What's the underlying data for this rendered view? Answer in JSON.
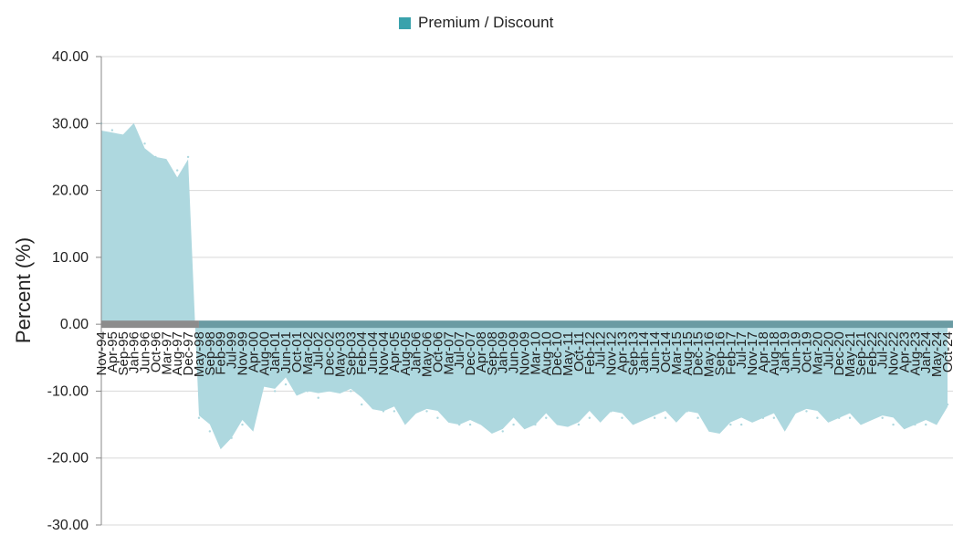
{
  "chart_data": {
    "type": "area",
    "title": "",
    "xlabel": "",
    "ylabel": "Percent (%)",
    "ylim": [
      -30,
      40
    ],
    "ytick_labels": [
      "40.00",
      "30.00",
      "20.00",
      "10.00",
      "0.00",
      "-10.00",
      "-20.00",
      "-30.00"
    ],
    "grid": true,
    "legend_position": "top-center",
    "series": [
      {
        "name": "Premium / Discount",
        "color": "#3aa2ac",
        "fill_color": "#aed8df",
        "x": [
          "Nov-94",
          "Apr-95",
          "Sep-95",
          "Jan-96",
          "Jun-96",
          "Oct-96",
          "Mar-97",
          "Aug-97",
          "Dec-97",
          "May-98",
          "Sep-98",
          "Feb-99",
          "Jul-99",
          "Nov-99",
          "Apr-00",
          "Aug-00",
          "Jan-01",
          "Jun-01",
          "Oct-01",
          "Mar-02",
          "Jul-02",
          "Dec-02",
          "May-03",
          "Sep-03",
          "Feb-04",
          "Jun-04",
          "Nov-04",
          "Apr-05",
          "Aug-05",
          "Jan-06",
          "May-06",
          "Oct-06",
          "Mar-07",
          "Jul-07",
          "Dec-07",
          "Apr-08",
          "Sep-08",
          "Jan-09",
          "Jun-09",
          "Nov-09",
          "Mar-10",
          "Aug-10",
          "Dec-10",
          "May-11",
          "Oct-11",
          "Feb-12",
          "Jul-12",
          "Nov-12",
          "Apr-13",
          "Sep-13",
          "Jan-14",
          "Jun-14",
          "Oct-14",
          "Mar-15",
          "Aug-15",
          "Dec-15",
          "May-16",
          "Sep-16",
          "Feb-17",
          "Jul-17",
          "Nov-17",
          "Apr-18",
          "Aug-18",
          "Jan-19",
          "Jun-19",
          "Oct-19",
          "Mar-20",
          "Jul-20",
          "Dec-20",
          "May-21",
          "Sep-21",
          "Feb-22",
          "Jul-22",
          "Nov-22",
          "Apr-23",
          "Aug-23",
          "Jan-24",
          "May-24",
          "Oct-24"
        ],
        "values": [
          30,
          29,
          28,
          29,
          27,
          25,
          24,
          23,
          25,
          -14,
          -16,
          -18,
          -17,
          -15,
          -15,
          -9,
          -10,
          -9,
          -10,
          -10,
          -11,
          -9,
          -10,
          -10,
          -12,
          -12,
          -13,
          -13,
          -14,
          -13,
          -13,
          -14,
          -14,
          -15,
          -15,
          -14,
          -16,
          -16,
          -15,
          -15,
          -15,
          -14,
          -14,
          -15,
          -15,
          -14,
          -14,
          -13,
          -14,
          -14,
          -14,
          -14,
          -14,
          -14,
          -13,
          -14,
          -15,
          -16,
          -15,
          -15,
          -14,
          -14,
          -14,
          -15,
          -13,
          -13,
          -14,
          -14,
          -14,
          -14,
          -14,
          -14,
          -14,
          -15,
          -15,
          -15,
          -15,
          -14,
          -12
        ]
      }
    ]
  }
}
